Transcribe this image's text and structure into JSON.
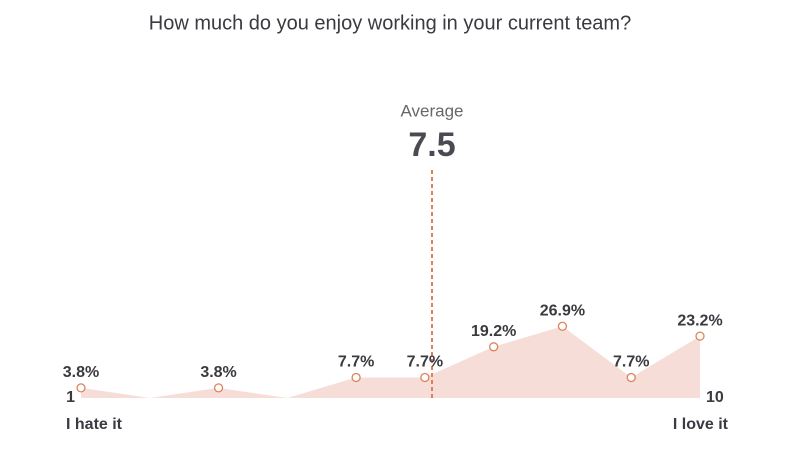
{
  "chart_data": {
    "type": "area",
    "title": "How much do you enjoy working in your current team?",
    "x": [
      1,
      2,
      3,
      4,
      5,
      6,
      7,
      8,
      9,
      10
    ],
    "values": [
      3.8,
      0,
      3.8,
      0,
      7.7,
      7.7,
      19.2,
      26.9,
      7.7,
      23.2
    ],
    "value_labels": [
      "3.8%",
      null,
      "3.8%",
      null,
      "7.7%",
      "7.7%",
      "19.2%",
      "26.9%",
      "7.7%",
      "23.2%"
    ],
    "xlim": [
      1,
      10
    ],
    "xticks": [
      1,
      10
    ],
    "ylim": [
      0,
      30
    ],
    "x_min_label": "I hate it",
    "x_max_label": "I love it",
    "average_label": "Average",
    "average": 7.5,
    "fill_color": "#f7ddd7",
    "marker_color": "#e0805a"
  }
}
